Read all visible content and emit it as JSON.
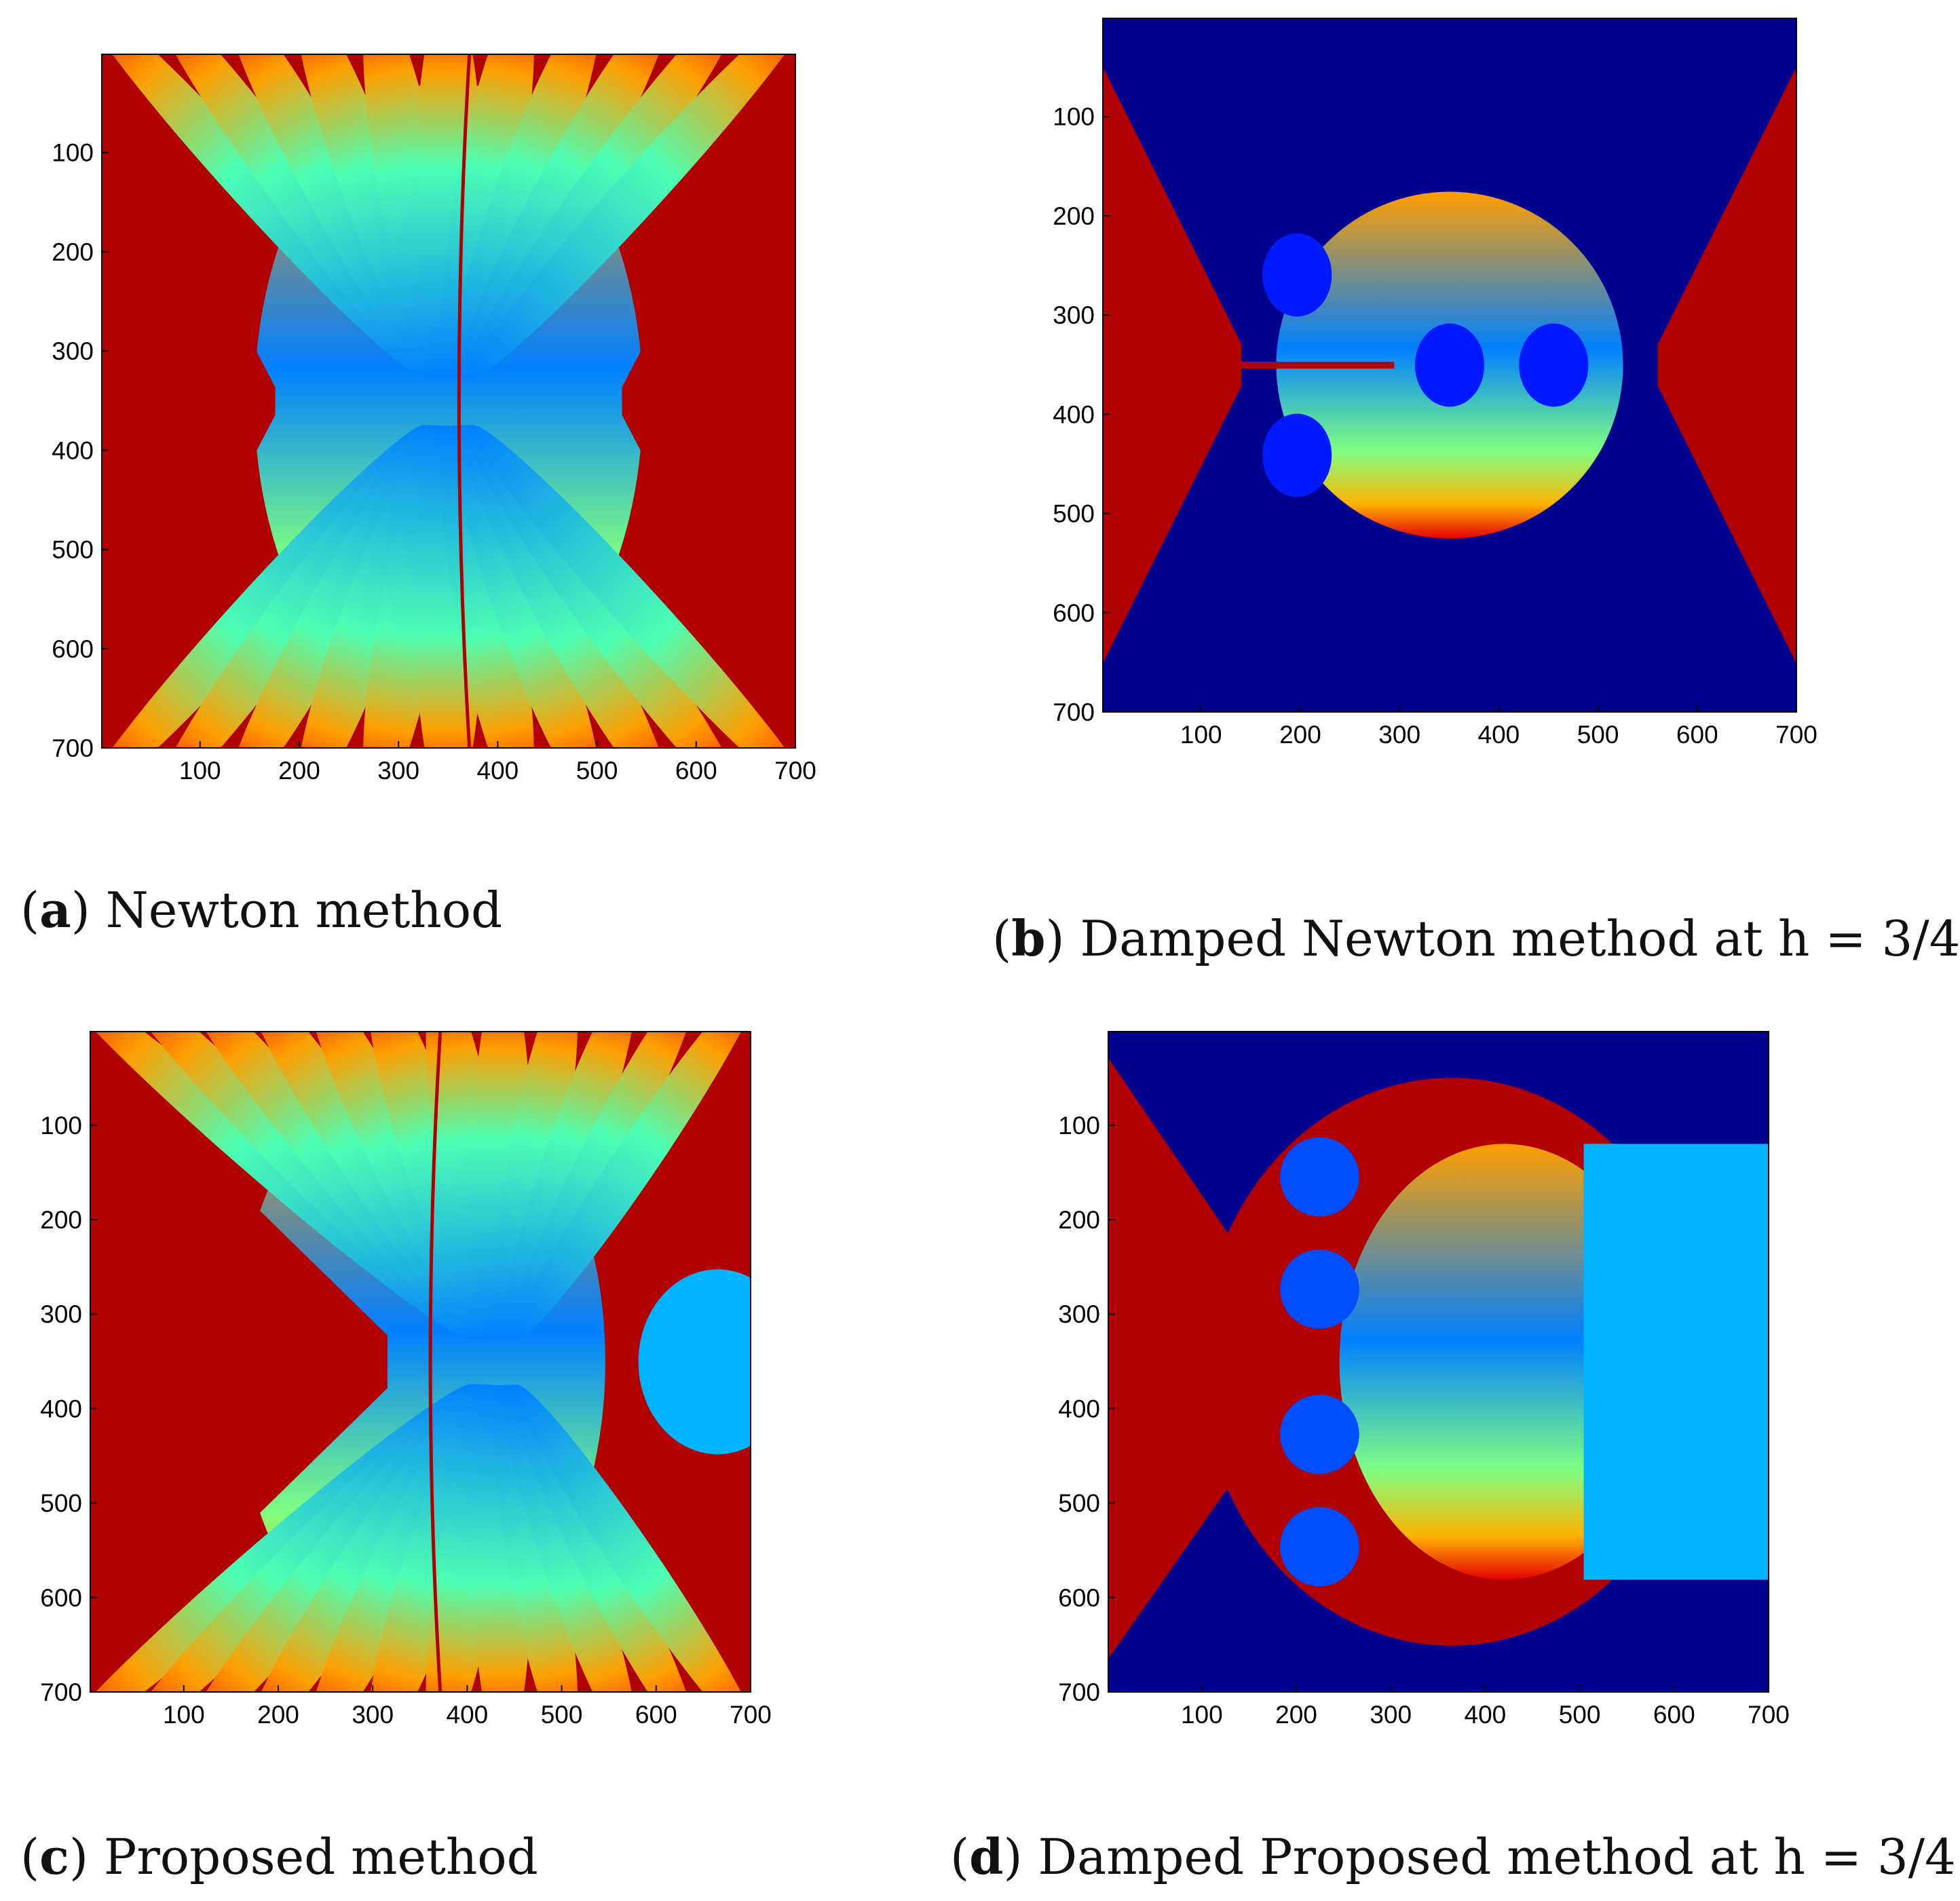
{
  "chart_data": [
    {
      "type": "heatmap",
      "panel_letter": "a",
      "title": "Newton method",
      "xlabel": "",
      "ylabel": "",
      "xlim": [
        1,
        700
      ],
      "ylim": [
        700,
        1
      ],
      "xticks": [
        100,
        200,
        300,
        400,
        500,
        600,
        700
      ],
      "yticks": [
        100,
        200,
        300,
        400,
        500,
        600,
        700
      ],
      "colormap": "jet",
      "grid": false,
      "dominant_basin_color": "#b00000",
      "background_basin_color": "#0000a0"
    },
    {
      "type": "heatmap",
      "panel_letter": "b",
      "title": "Damped Newton method at h = 3/4",
      "xlabel": "",
      "ylabel": "",
      "xlim": [
        1,
        700
      ],
      "ylim": [
        700,
        1
      ],
      "xticks": [
        100,
        200,
        300,
        400,
        500,
        600,
        700
      ],
      "yticks": [
        100,
        200,
        300,
        400,
        500,
        600,
        700
      ],
      "colormap": "jet",
      "grid": false,
      "dominant_basin_color": "#b00000",
      "background_basin_color": "#00008f"
    },
    {
      "type": "heatmap",
      "panel_letter": "c",
      "title": "Proposed method",
      "xlabel": "",
      "ylabel": "",
      "xlim": [
        1,
        700
      ],
      "ylim": [
        700,
        1
      ],
      "xticks": [
        100,
        200,
        300,
        400,
        500,
        600,
        700
      ],
      "yticks": [
        100,
        200,
        300,
        400,
        500,
        600,
        700
      ],
      "colormap": "jet",
      "grid": false,
      "dominant_basin_color": "#b00000",
      "background_basin_color": "#0000a0"
    },
    {
      "type": "heatmap",
      "panel_letter": "d",
      "title": "Damped Proposed method at h = 3/4",
      "xlabel": "",
      "ylabel": "",
      "xlim": [
        1,
        700
      ],
      "ylim": [
        700,
        1
      ],
      "xticks": [
        100,
        200,
        300,
        400,
        500,
        600,
        700
      ],
      "yticks": [
        100,
        200,
        300,
        400,
        500,
        600,
        700
      ],
      "colormap": "jet",
      "grid": false,
      "dominant_basin_color": "#b00000",
      "background_basin_color": "#00008f"
    }
  ]
}
